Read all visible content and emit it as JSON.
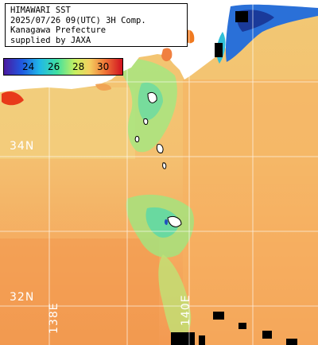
{
  "title": {
    "lines": [
      "HIMAWARI SST",
      "2025/07/26 09(UTC) 3H Comp.",
      "Kanagawa Prefecture",
      "supplied by JAXA"
    ]
  },
  "colorbar": {
    "labels": [
      "24",
      "26",
      "28",
      "30"
    ],
    "colors": [
      "#3a1a8c",
      "#2060e0",
      "#20c0e0",
      "#40e0a0",
      "#c0f060",
      "#f0e060",
      "#f0a040",
      "#f07030",
      "#e03030",
      "#c00020"
    ]
  },
  "grid": {
    "lat_labels": [
      "34N",
      "32N"
    ],
    "lon_labels": [
      "138E",
      "140E"
    ]
  },
  "colors": {
    "land": "#ffffff",
    "missing": "#000000",
    "grid": "#ffffff",
    "sea_warm": "#f5b26a",
    "sea_mid": "#f3d27a",
    "sea_cool": "#9ae07f",
    "coast_edge": "#ff4020"
  }
}
